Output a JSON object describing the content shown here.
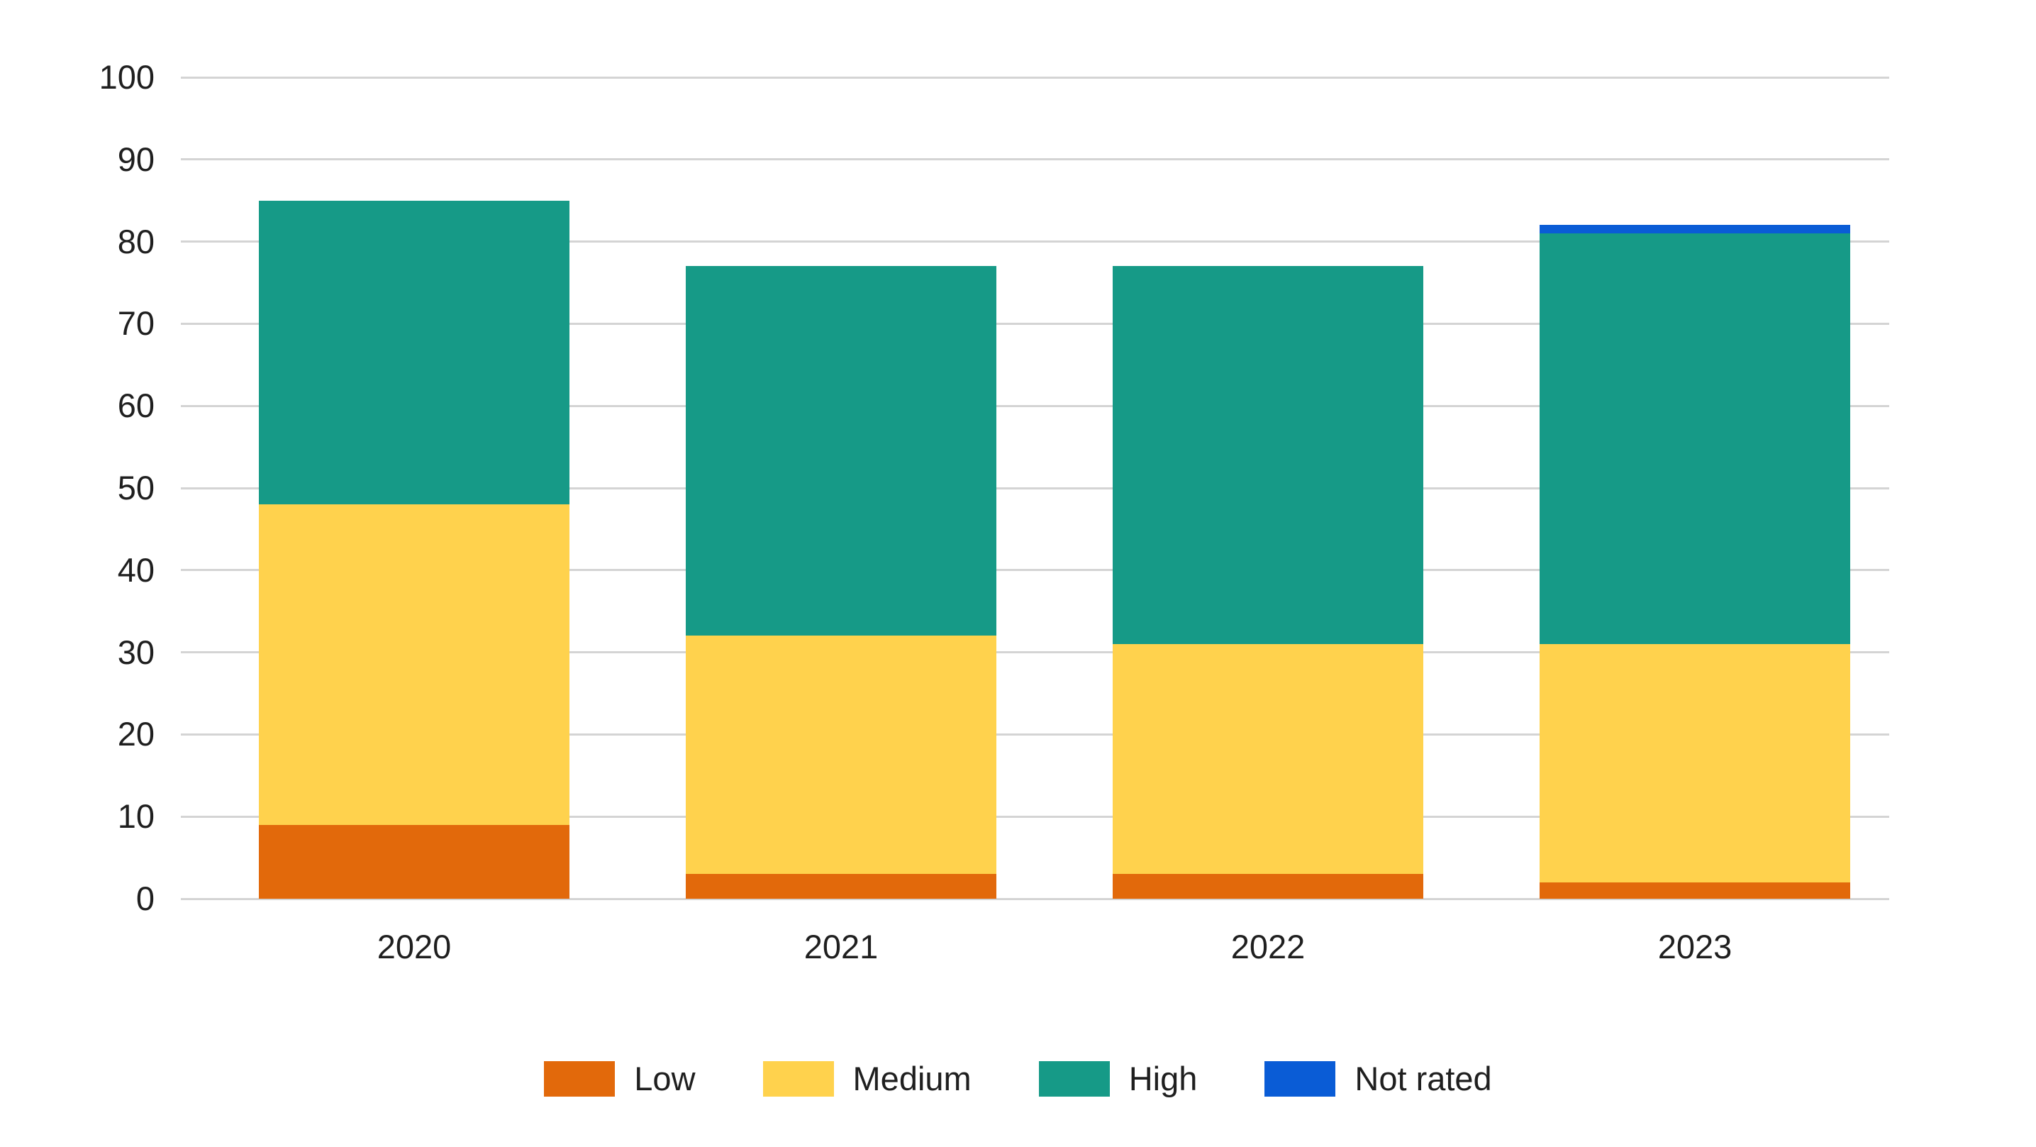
{
  "chart_data": {
    "type": "bar",
    "stacked": true,
    "title": "",
    "categories": [
      "2020",
      "2021",
      "2022",
      "2023"
    ],
    "series": [
      {
        "name": "Low",
        "color": "#E2690B",
        "values": [
          9,
          3,
          3,
          2
        ]
      },
      {
        "name": "Medium",
        "color": "#FFD24D",
        "values": [
          39,
          29,
          28,
          29
        ]
      },
      {
        "name": "High",
        "color": "#169A87",
        "values": [
          37,
          45,
          46,
          50
        ]
      },
      {
        "name": "Not rated",
        "color": "#0A5CD6",
        "values": [
          0,
          0,
          0,
          1
        ]
      }
    ],
    "stack_totals": [
      85,
      77,
      77,
      82
    ],
    "y_axis": {
      "min": 0,
      "max": 100,
      "ticks": [
        0,
        10,
        20,
        30,
        40,
        50,
        60,
        70,
        80,
        90,
        100
      ]
    },
    "x_axis": {
      "labels": [
        "2020",
        "2021",
        "2022",
        "2023"
      ]
    },
    "legend": {
      "position": "bottom",
      "items": [
        "Low",
        "Medium",
        "High",
        "Not rated"
      ]
    },
    "grid": "horizontal",
    "gridline_color": "#D4D4D4",
    "text_color": "#1F1F1F"
  }
}
